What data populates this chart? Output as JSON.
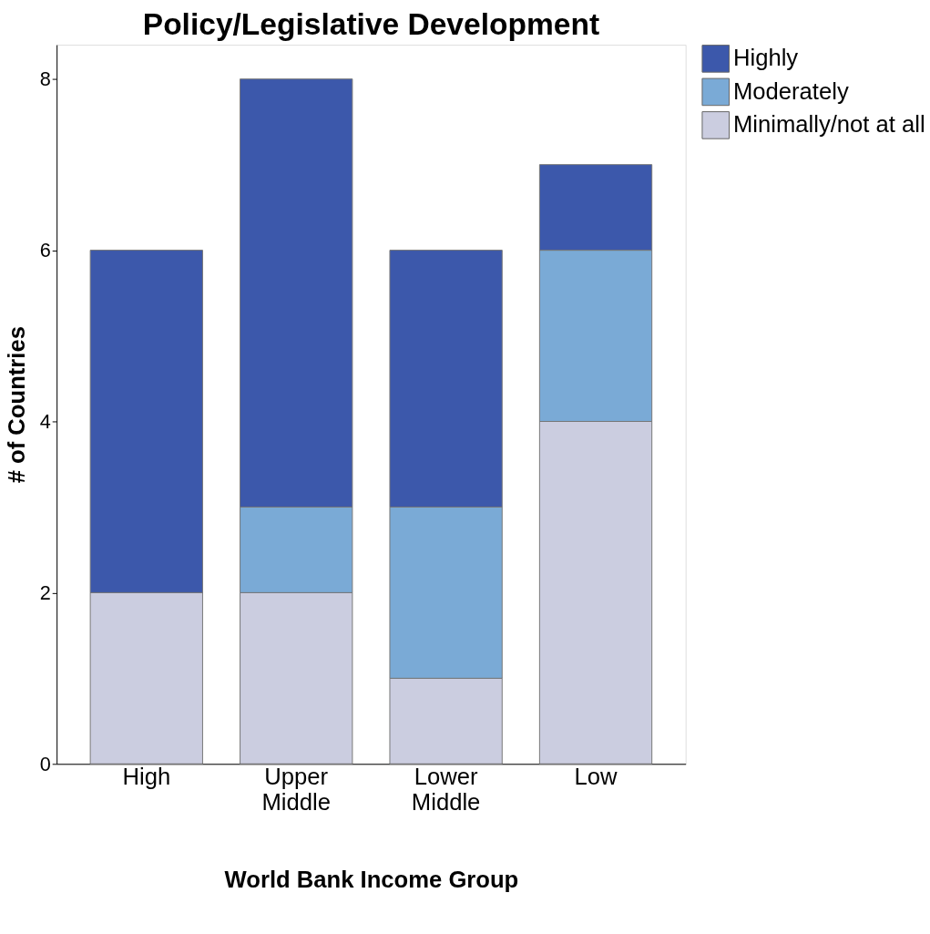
{
  "chart_data": {
    "type": "bar",
    "title": "Policy/Legislative Development",
    "xlabel": "World Bank Income Group",
    "ylabel": "# of Countries",
    "categories": [
      "High",
      "Upper Middle",
      "Lower Middle",
      "Low"
    ],
    "stacked": true,
    "series": [
      {
        "name": "Minimally/not at all",
        "color": "#cbcde0",
        "values": [
          2,
          2,
          1,
          4
        ]
      },
      {
        "name": "Moderately",
        "color": "#7aaad6",
        "values": [
          0,
          1,
          2,
          2
        ]
      },
      {
        "name": "Highly",
        "color": "#3c58ab",
        "values": [
          4,
          5,
          3,
          1
        ]
      }
    ],
    "ylim": [
      0,
      8.4
    ],
    "yticks": [
      0,
      2,
      4,
      6,
      8
    ],
    "grid": false,
    "legend": "top right"
  }
}
